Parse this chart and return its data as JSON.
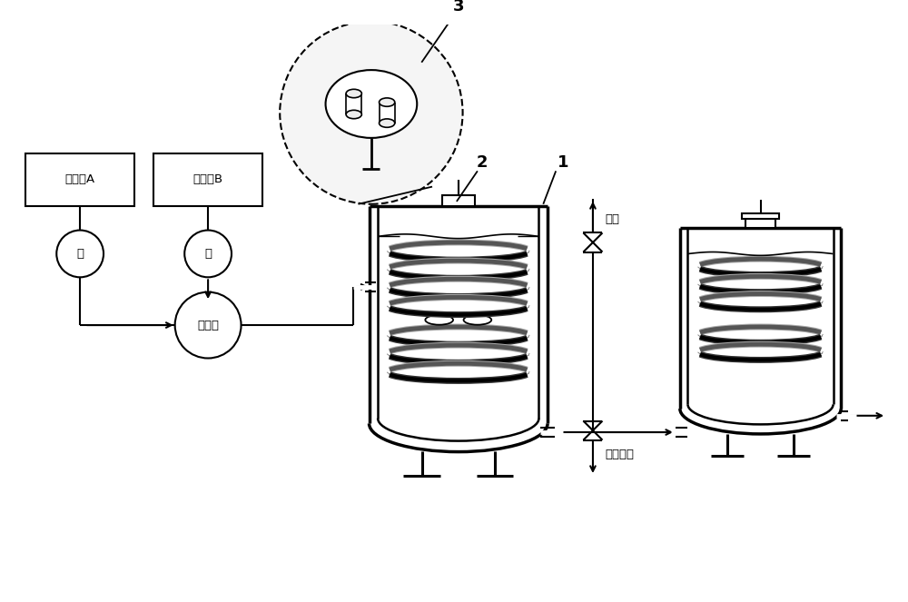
{
  "bg_color": "#ffffff",
  "line_color": "#000000",
  "label_A": "反应物A",
  "label_B": "反应物B",
  "label_pump": "泵",
  "label_mixer": "混合器",
  "label_exhaust": "排气",
  "label_discharge": "紧急卸料",
  "label_1": "1",
  "label_2": "2",
  "label_3": "3",
  "figsize": [
    10.0,
    6.63
  ],
  "dpi": 100,
  "xlim": [
    0,
    10
  ],
  "ylim": [
    0,
    6.63
  ]
}
